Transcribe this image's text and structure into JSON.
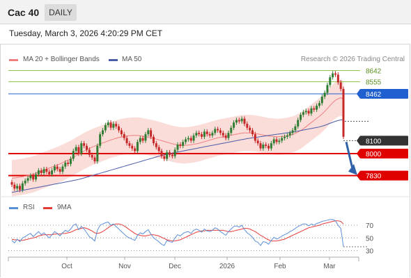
{
  "header": {
    "symbol": "Cac 40",
    "timeframe": "DAILY",
    "datetime": "Tuesday, March 3, 2026 4:20:29 PM CET"
  },
  "legend": {
    "ma20": "MA 20 + Bollinger Bands",
    "ma50": "MA 50",
    "credit": "Research © 2026 Trading Central",
    "rsi": "RSI",
    "ma9": "9MA"
  },
  "colors": {
    "up": "#2e7d32",
    "down": "#c62828",
    "band": "#f9d6d2",
    "ma20": "#f08080",
    "ma50": "#4a5ca8",
    "resistance": "#8bc34a",
    "pivot": "#1f5fcf",
    "support": "#e00000",
    "current": "#333333",
    "rsi": "#5b8fd8",
    "rsi_ma": "#e53935",
    "arrow": "#2f62a8"
  },
  "chart_data": [
    {
      "type": "candlestick",
      "title": "Cac 40 DAILY",
      "x_ticks": [
        "Oct",
        "Nov",
        "Dec",
        "2026",
        "Feb",
        "Mar"
      ],
      "x_range": [
        "2025-09-03",
        "2026-03-03"
      ],
      "ylim": [
        7710,
        8650
      ],
      "levels": [
        {
          "value": 8642,
          "label": "8642",
          "kind": "resistance"
        },
        {
          "value": 8555,
          "label": "8555",
          "kind": "resistance"
        },
        {
          "value": 8462,
          "label": "8462",
          "kind": "pivot"
        },
        {
          "value": 8100,
          "label": "8100",
          "kind": "current"
        },
        {
          "value": 8000,
          "label": "8000",
          "kind": "support"
        },
        {
          "value": 7830,
          "label": "7830",
          "kind": "support"
        }
      ],
      "close": [
        7760,
        7730,
        7750,
        7720,
        7770,
        7790,
        7810,
        7830,
        7800,
        7840,
        7870,
        7850,
        7880,
        7860,
        7840,
        7870,
        7900,
        7880,
        7860,
        7900,
        7930,
        7920,
        7960,
        8020,
        8050,
        8000,
        8080,
        8060,
        8030,
        7990,
        7970,
        7940,
        8060,
        8150,
        8180,
        8220,
        8240,
        8200,
        8230,
        8210,
        8180,
        8150,
        8120,
        8080,
        8060,
        8040,
        8020,
        8090,
        8120,
        8100,
        8150,
        8180,
        8130,
        8080,
        8050,
        8020,
        7980,
        7960,
        8010,
        7990,
        7980,
        8030,
        8070,
        8060,
        8090,
        8110,
        8120,
        8100,
        8140,
        8160,
        8150,
        8130,
        8170,
        8150,
        8140,
        8160,
        8190,
        8180,
        8160,
        8140,
        8120,
        8160,
        8200,
        8240,
        8260,
        8250,
        8270,
        8230,
        8200,
        8180,
        8150,
        8100,
        8080,
        8040,
        8070,
        8060,
        8040,
        8080,
        8110,
        8090,
        8100,
        8120,
        8130,
        8140,
        8160,
        8180,
        8210,
        8260,
        8300,
        8320,
        8330,
        8310,
        8350,
        8340,
        8370,
        8390,
        8440,
        8470,
        8530,
        8590,
        8620,
        8610,
        8550,
        8500,
        8130
      ],
      "ma20": [
        7810,
        7812,
        7815,
        7818,
        7822,
        7826,
        7830,
        7835,
        7840,
        7848,
        7856,
        7864,
        7872,
        7880,
        7888,
        7896,
        7904,
        7912,
        7920,
        7930,
        7940,
        7950,
        7960,
        7972,
        7984,
        7996,
        8008,
        8020,
        8030,
        8040,
        8050,
        8058,
        8066,
        8074,
        8082,
        8090,
        8098,
        8106,
        8112,
        8118,
        8124,
        8128,
        8132,
        8136,
        8138,
        8140,
        8140,
        8140,
        8138,
        8134,
        8130,
        8126,
        8122,
        8118,
        8112,
        8106,
        8100,
        8094,
        8088,
        8082,
        8076,
        8072,
        8068,
        8065,
        8064,
        8064,
        8066,
        8068,
        8072,
        8076,
        8080,
        8086,
        8092,
        8098,
        8104,
        8110,
        8116,
        8122,
        8126,
        8130,
        8134,
        8138,
        8142,
        8146,
        8150,
        8154,
        8158,
        8160,
        8160,
        8160,
        8158,
        8156,
        8152,
        8148,
        8144,
        8140,
        8136,
        8134,
        8132,
        8130,
        8130,
        8132,
        8134,
        8138,
        8142,
        8148,
        8156,
        8166,
        8178,
        8192,
        8208,
        8224,
        8240,
        8256,
        8272,
        8288,
        8306,
        8326,
        8348,
        8372,
        8394,
        8412,
        8424,
        8432,
        8420
      ],
      "ma50": [
        7700,
        7704,
        7708,
        7712,
        7716,
        7720,
        7724,
        7728,
        7732,
        7736,
        7740,
        7744,
        7748,
        7752,
        7756,
        7760,
        7764,
        7768,
        7772,
        7776,
        7780,
        7784,
        7788,
        7792,
        7796,
        7800,
        7806,
        7812,
        7818,
        7824,
        7830,
        7836,
        7842,
        7848,
        7854,
        7860,
        7866,
        7872,
        7878,
        7884,
        7890,
        7896,
        7902,
        7908,
        7914,
        7920,
        7926,
        7932,
        7938,
        7944,
        7950,
        7956,
        7962,
        7968,
        7974,
        7980,
        7985,
        7990,
        7995,
        8000,
        8004,
        8008,
        8012,
        8016,
        8020,
        8024,
        8028,
        8032,
        8036,
        8040,
        8044,
        8048,
        8052,
        8056,
        8060,
        8064,
        8068,
        8072,
        8076,
        8080,
        8084,
        8088,
        8092,
        8096,
        8100,
        8104,
        8108,
        8112,
        8116,
        8119,
        8122,
        8125,
        8128,
        8131,
        8134,
        8137,
        8140,
        8143,
        8146,
        8149,
        8152,
        8155,
        8158,
        8161,
        8164,
        8167,
        8170,
        8174,
        8178,
        8182,
        8186,
        8190,
        8194,
        8198,
        8202,
        8206,
        8212,
        8218,
        8226,
        8234,
        8242,
        8250,
        8256,
        8260,
        8262
      ],
      "band_width": 140
    },
    {
      "type": "line",
      "title": "RSI",
      "ylim": [
        25,
        80
      ],
      "y_ticks": [
        70,
        50,
        30
      ],
      "series": [
        {
          "name": "RSI",
          "values": [
            46,
            42,
            48,
            44,
            50,
            52,
            55,
            57,
            52,
            56,
            60,
            55,
            58,
            54,
            50,
            55,
            60,
            57,
            53,
            58,
            62,
            60,
            64,
            70,
            72,
            63,
            68,
            64,
            58,
            52,
            49,
            45,
            62,
            70,
            72,
            74,
            75,
            70,
            72,
            68,
            64,
            60,
            56,
            52,
            50,
            48,
            46,
            54,
            58,
            56,
            60,
            63,
            56,
            50,
            47,
            44,
            40,
            38,
            46,
            44,
            43,
            50,
            55,
            53,
            57,
            59,
            60,
            57,
            62,
            64,
            62,
            59,
            64,
            61,
            60,
            62,
            66,
            64,
            60,
            57,
            54,
            60,
            64,
            68,
            69,
            67,
            70,
            63,
            58,
            55,
            51,
            45,
            43,
            38,
            44,
            43,
            40,
            46,
            51,
            48,
            50,
            53,
            55,
            57,
            60,
            62,
            65,
            68,
            70,
            72,
            72,
            69,
            72,
            70,
            73,
            74,
            76,
            77,
            78,
            79,
            79,
            77,
            70,
            65,
            36
          ]
        },
        {
          "name": "9MA",
          "values": [
            48,
            47,
            47,
            46,
            46,
            47,
            48,
            49,
            50,
            51,
            53,
            54,
            55,
            55,
            55,
            55,
            56,
            56,
            56,
            57,
            57,
            58,
            59,
            61,
            63,
            64,
            65,
            66,
            65,
            63,
            61,
            58,
            57,
            58,
            60,
            63,
            66,
            69,
            71,
            72,
            72,
            71,
            69,
            66,
            63,
            60,
            57,
            55,
            54,
            53,
            53,
            54,
            55,
            55,
            54,
            53,
            51,
            49,
            47,
            46,
            45,
            45,
            46,
            47,
            49,
            51,
            53,
            55,
            57,
            59,
            60,
            61,
            61,
            62,
            62,
            62,
            62,
            62,
            62,
            62,
            61,
            60,
            60,
            61,
            62,
            63,
            64,
            65,
            65,
            64,
            62,
            60,
            57,
            54,
            52,
            49,
            47,
            45,
            45,
            45,
            46,
            47,
            48,
            50,
            52,
            54,
            56,
            58,
            60,
            62,
            64,
            66,
            67,
            68,
            69,
            70,
            72,
            73,
            74,
            75,
            76,
            77,
            77,
            76,
            72
          ]
        }
      ]
    }
  ]
}
